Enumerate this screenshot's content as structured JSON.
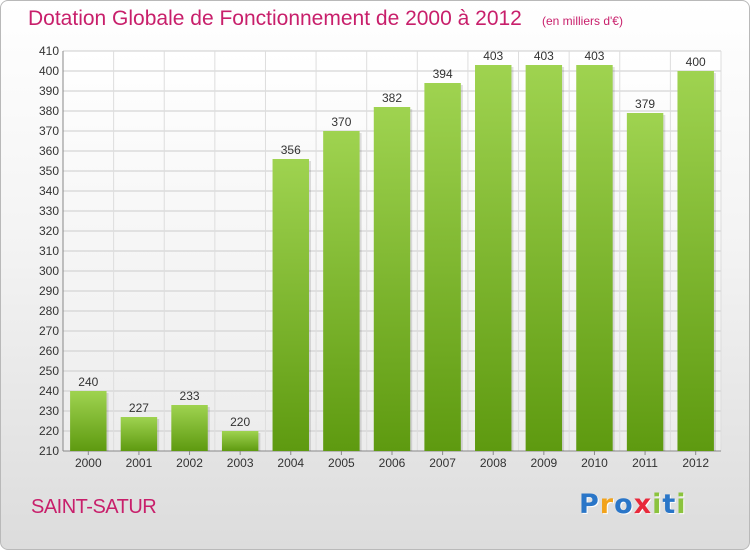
{
  "header": {
    "title": "Dotation Globale de Fonctionnement de 2000 à 2012",
    "unit": "(en milliers d'€)"
  },
  "footer": {
    "commune": "SAINT-SATUR",
    "logo_letters": [
      "P",
      "r",
      "o",
      "x",
      "i",
      "t",
      "i"
    ],
    "logo_colors": [
      "#2a76c8",
      "#f2a31b",
      "#2a76c8",
      "#e8293b",
      "#8bc33d",
      "#2a76c8",
      "#8bc33d"
    ]
  },
  "colors": {
    "title": "#c81f6b",
    "bar_top": "#9fd350",
    "bar_bottom": "#5e9a10",
    "grid": "#cccccc",
    "axis_text": "#333333"
  },
  "chart_data": {
    "type": "bar",
    "categories": [
      "2000",
      "2001",
      "2002",
      "2003",
      "2004",
      "2005",
      "2006",
      "2007",
      "2008",
      "2009",
      "2010",
      "2011",
      "2012"
    ],
    "values": [
      240,
      227,
      233,
      220,
      356,
      370,
      382,
      394,
      403,
      403,
      403,
      379,
      400
    ],
    "ylim": [
      210,
      410
    ],
    "ytick_step": 10,
    "grid": true,
    "data_labels": true
  }
}
